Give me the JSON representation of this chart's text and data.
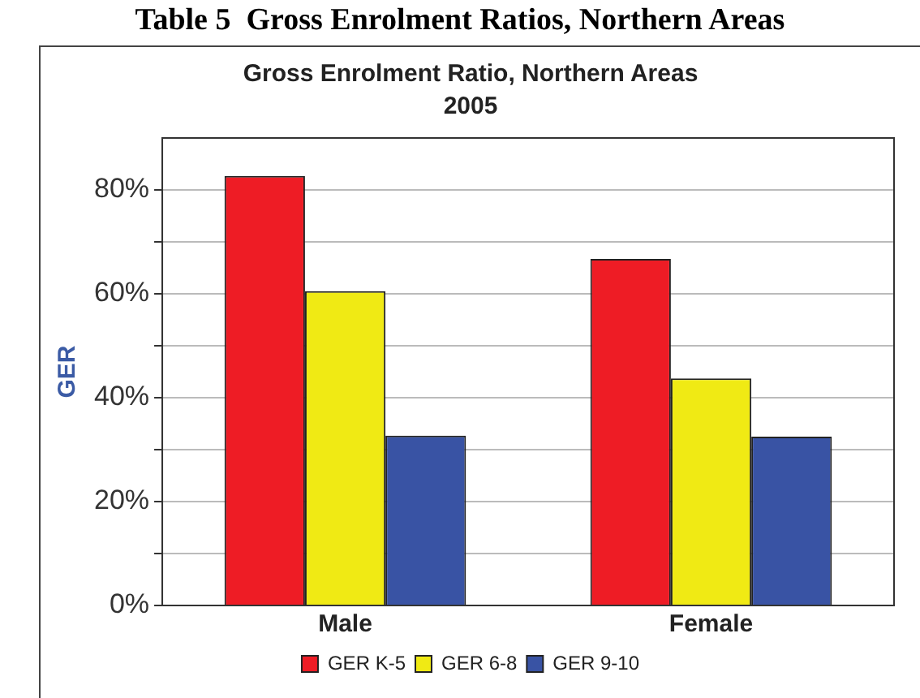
{
  "chart_data": {
    "type": "bar",
    "title": "Gross Enrolment Ratio, Northern Areas",
    "subtitle": "2005",
    "ylabel": "GER",
    "annotations": [
      "Table 5  Gross Enrolment Ratios, Northern Areas"
    ],
    "categories": [
      "Male",
      "Female"
    ],
    "series": [
      {
        "name": "GER K-5",
        "color": "#ee1c25",
        "values": [
          82.7,
          66.7
        ]
      },
      {
        "name": "GER 6-8",
        "color": "#f0ea14",
        "values": [
          60.5,
          43.7
        ]
      },
      {
        "name": "GER 9-10",
        "color": "#3953a4",
        "values": [
          32.7,
          32.5
        ]
      }
    ],
    "ylim": [
      0,
      90
    ],
    "yticks": [
      {
        "value": 0,
        "label": "0%"
      },
      {
        "value": 10,
        "label": null
      },
      {
        "value": 20,
        "label": "20%"
      },
      {
        "value": 30,
        "label": null
      },
      {
        "value": 40,
        "label": "40%"
      },
      {
        "value": 50,
        "label": null
      },
      {
        "value": 60,
        "label": "60%"
      },
      {
        "value": 70,
        "label": null
      },
      {
        "value": 80,
        "label": "80%"
      }
    ],
    "grid": "y",
    "legend": "bottom"
  }
}
